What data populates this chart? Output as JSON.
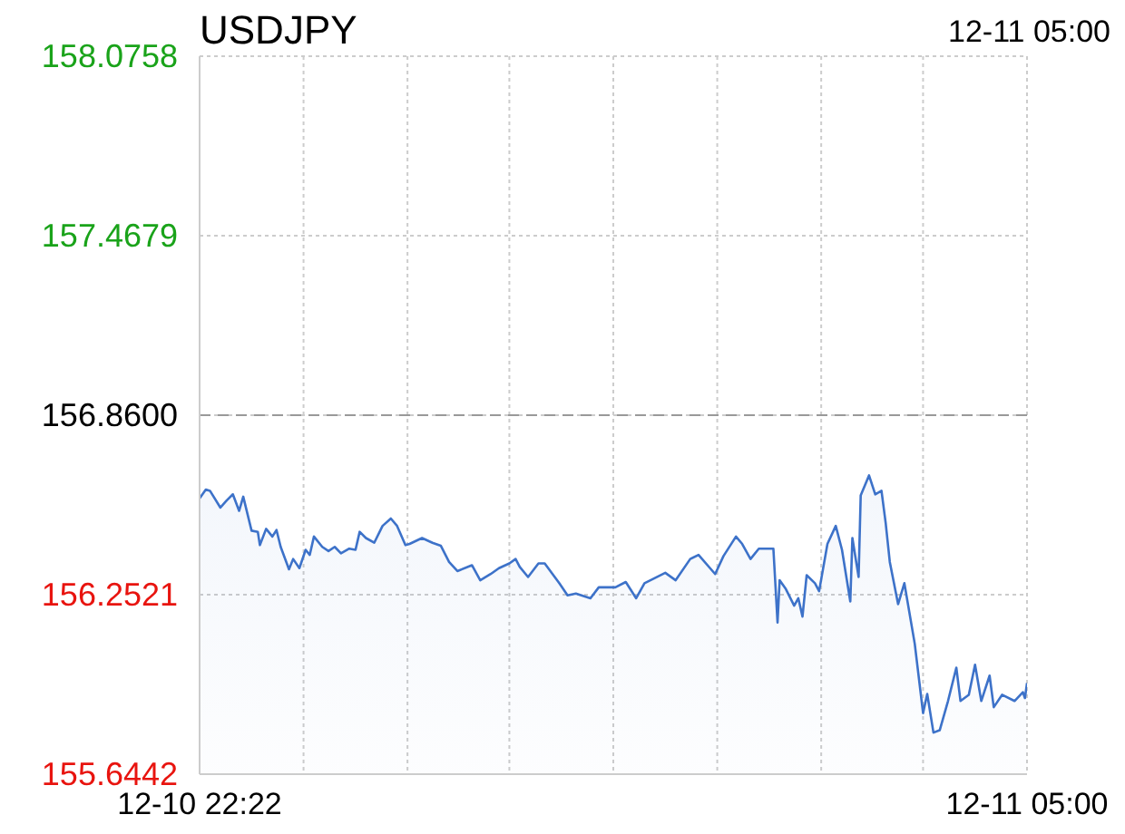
{
  "chart_data": {
    "type": "area",
    "title": "USDJPY",
    "annotations": [
      "12-11 05:00"
    ],
    "x": [
      "--12-10T22:22",
      "--12-10T22:25",
      "--12-10T22:27",
      "--12-10T22:32",
      "--12-10T22:35",
      "--12-10T22:38",
      "--12-10T22:41",
      "--12-10T22:43",
      "--12-10T22:47",
      "--12-10T22:50",
      "--12-10T22:51",
      "--12-10T22:54",
      "--12-10T22:57",
      "--12-10T22:59",
      "--12-10T23:01",
      "--12-10T23:05",
      "--12-10T23:07",
      "--12-10T23:10",
      "--12-10T23:13",
      "--12-10T23:15",
      "--12-10T23:17",
      "--12-10T23:21",
      "--12-10T23:24",
      "--12-10T23:27",
      "--12-10T23:30",
      "--12-10T23:34",
      "--12-10T23:37",
      "--12-10T23:39",
      "--12-10T23:42",
      "--12-10T23:46",
      "--12-10T23:50",
      "--12-10T23:54",
      "--12-10T23:57",
      "--12-11T00:01",
      "--12-11T00:03",
      "--12-11T00:09",
      "--12-11T00:14",
      "--12-11T00:18",
      "--12-11T00:22",
      "--12-11T00:26",
      "--12-11T00:33",
      "--12-11T00:37",
      "--12-11T00:42",
      "--12-11T00:46",
      "--12-11T00:51",
      "--12-11T00:54",
      "--12-11T00:56",
      "--12-11T01:00",
      "--12-11T01:05",
      "--12-11T01:08",
      "--12-11T01:15",
      "--12-11T01:19",
      "--12-11T01:23",
      "--12-11T01:30",
      "--12-11T01:34",
      "--12-11T01:42",
      "--12-11T01:47",
      "--12-11T01:52",
      "--12-11T01:56",
      "--12-11T02:06",
      "--12-11T02:11",
      "--12-11T02:18",
      "--12-11T02:22",
      "--12-11T02:30",
      "--12-11T02:34",
      "--12-11T02:40",
      "--12-11T02:43",
      "--12-11T02:47",
      "--12-11T02:51",
      "--12-11T02:58",
      "--12-11T03:00",
      "--12-11T03:01",
      "--12-11T03:04",
      "--12-11T03:08",
      "--12-11T03:10",
      "--12-11T03:12",
      "--12-11T03:14",
      "--12-11T03:18",
      "--12-11T03:20",
      "--12-11T03:24",
      "--12-11T03:28",
      "--12-11T03:31",
      "--12-11T03:35",
      "--12-11T03:36",
      "--12-11T03:39",
      "--12-11T03:40",
      "--12-11T03:44",
      "--12-11T03:47",
      "--12-11T03:50",
      "--12-11T03:52",
      "--12-11T03:54",
      "--12-11T03:58",
      "--12-11T04:01",
      "--12-11T04:06",
      "--12-11T04:10",
      "--12-11T04:12",
      "--12-11T04:15",
      "--12-11T04:18",
      "--12-11T04:22",
      "--12-11T04:26",
      "--12-11T04:28",
      "--12-11T04:32",
      "--12-11T04:35",
      "--12-11T04:38",
      "--12-11T04:42",
      "--12-11T04:44",
      "--12-11T04:48",
      "--12-11T04:54",
      "--12-11T04:58",
      "--12-11T04:59",
      "--12-11T05:00"
    ],
    "series": [
      {
        "color": "#3d72c9",
        "values": [
          156.578,
          156.608,
          156.604,
          156.547,
          156.571,
          156.592,
          156.536,
          156.584,
          156.469,
          156.465,
          156.42,
          156.475,
          156.449,
          156.471,
          156.414,
          156.338,
          156.373,
          156.342,
          156.404,
          156.387,
          156.449,
          156.414,
          156.4,
          156.414,
          156.392,
          156.408,
          156.404,
          156.465,
          156.444,
          156.428,
          156.485,
          156.51,
          156.485,
          156.42,
          156.424,
          156.444,
          156.428,
          156.418,
          156.363,
          156.332,
          156.352,
          156.301,
          156.322,
          156.342,
          156.358,
          156.373,
          156.346,
          156.312,
          156.358,
          156.358,
          156.291,
          156.25,
          156.256,
          156.24,
          156.277,
          156.277,
          156.295,
          156.24,
          156.291,
          156.326,
          156.301,
          156.373,
          156.387,
          156.322,
          156.383,
          156.449,
          156.424,
          156.373,
          156.408,
          156.408,
          156.158,
          156.301,
          156.271,
          156.215,
          156.24,
          156.178,
          156.318,
          156.291,
          156.264,
          156.424,
          156.485,
          156.404,
          156.229,
          156.444,
          156.312,
          156.588,
          156.656,
          156.592,
          156.604,
          156.496,
          156.363,
          156.22,
          156.291,
          156.086,
          155.851,
          155.916,
          155.785,
          155.793,
          155.892,
          156.005,
          155.892,
          155.913,
          156.015,
          155.892,
          155.978,
          155.871,
          155.913,
          155.892,
          155.922,
          155.902,
          155.953
        ]
      }
    ],
    "xlim": [
      "--12-10T22:22",
      "--12-11T05:00"
    ],
    "xticks": [
      {
        "value": "--12-10T22:22",
        "label": "12-10 22:22"
      },
      {
        "value": "--12-10T23:12",
        "label": null
      },
      {
        "value": "--12-11T00:02",
        "label": null
      },
      {
        "value": "--12-11T00:51",
        "label": null
      },
      {
        "value": "--12-11T01:41",
        "label": null
      },
      {
        "value": "--12-11T02:31",
        "label": null
      },
      {
        "value": "--12-11T03:21",
        "label": null
      },
      {
        "value": "--12-11T04:10",
        "label": null
      },
      {
        "value": "--12-11T05:00",
        "label": "12-11 05:00"
      }
    ],
    "ylim": [
      155.6442,
      158.0758
    ],
    "yticks": [
      {
        "value": 155.6442,
        "label": "155.6442"
      },
      {
        "value": 156.2521,
        "label": "156.2521"
      },
      {
        "value": 156.86,
        "label": "156.8600"
      },
      {
        "value": 157.4679,
        "label": "157.4679"
      },
      {
        "value": 158.0758,
        "label": "158.0758"
      }
    ],
    "ref_lines": [
      {
        "axis": "y",
        "value": 156.86,
        "color": "#999999",
        "line_style": "dashed"
      }
    ],
    "grid": true,
    "marker": "none",
    "line_style": "solid"
  }
}
